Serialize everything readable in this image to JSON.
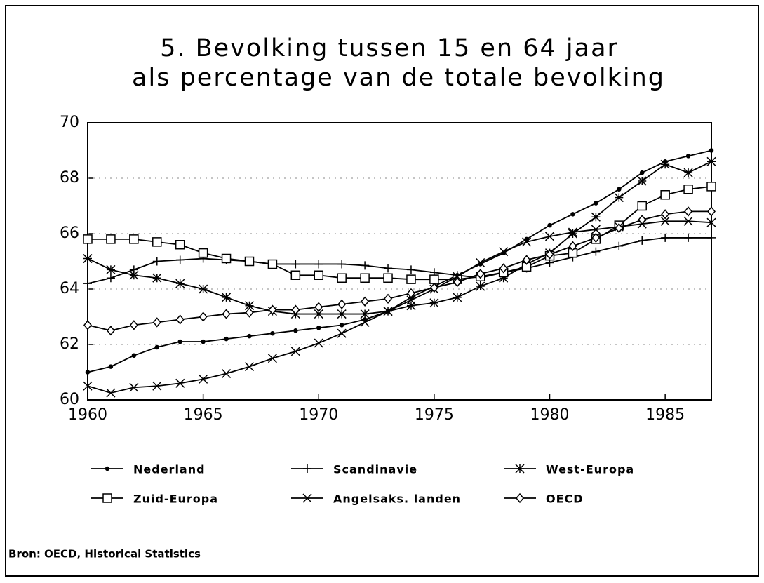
{
  "chart_data": {
    "type": "line",
    "title": [
      "5. Bevolking tussen 15 en 64 jaar",
      "als percentage van de totale bevolking"
    ],
    "source": "Bron: OECD, Historical Statistics",
    "x": [
      1960,
      1961,
      1962,
      1963,
      1964,
      1965,
      1966,
      1967,
      1968,
      1969,
      1970,
      1971,
      1972,
      1973,
      1974,
      1975,
      1976,
      1977,
      1978,
      1979,
      1980,
      1981,
      1982,
      1983,
      1984,
      1985,
      1986,
      1987
    ],
    "xlim": [
      1960,
      1987
    ],
    "xticks": [
      1960,
      1965,
      1970,
      1975,
      1980,
      1985
    ],
    "ylim": [
      60,
      70
    ],
    "yticks": [
      60,
      62,
      64,
      66,
      68,
      70
    ],
    "grid": true,
    "series": [
      {
        "name": "Nederland",
        "color": "#000000",
        "marker": "dot",
        "values": [
          61.0,
          61.2,
          61.6,
          61.9,
          62.1,
          62.1,
          62.2,
          62.3,
          62.4,
          62.5,
          62.6,
          62.7,
          62.9,
          63.2,
          63.7,
          64.1,
          64.5,
          64.9,
          65.3,
          65.8,
          66.3,
          66.7,
          67.1,
          67.6,
          68.2,
          68.6,
          68.8,
          69.0
        ]
      },
      {
        "name": "Scandinavie",
        "color": "#000000",
        "marker": "plus",
        "values": [
          64.2,
          64.4,
          64.7,
          65.0,
          65.05,
          65.1,
          65.05,
          65.0,
          64.9,
          64.9,
          64.9,
          64.9,
          64.85,
          64.75,
          64.7,
          64.6,
          64.5,
          64.4,
          64.6,
          64.75,
          64.95,
          65.15,
          65.35,
          65.55,
          65.75,
          65.85,
          65.85,
          65.85
        ]
      },
      {
        "name": "West-Europa",
        "color": "#000000",
        "marker": "asterisk",
        "values": [
          65.1,
          64.7,
          64.5,
          64.4,
          64.2,
          64.0,
          63.7,
          63.4,
          63.2,
          63.1,
          63.1,
          63.1,
          63.1,
          63.2,
          63.4,
          63.5,
          63.7,
          64.1,
          64.4,
          64.9,
          65.3,
          66.0,
          66.6,
          67.3,
          67.9,
          68.5,
          68.2,
          68.6
        ]
      },
      {
        "name": "Zuid-Europa",
        "color": "#000000",
        "marker": "square",
        "values": [
          65.8,
          65.8,
          65.8,
          65.7,
          65.6,
          65.3,
          65.1,
          65.0,
          64.9,
          64.5,
          64.5,
          64.4,
          64.4,
          64.4,
          64.35,
          64.35,
          64.35,
          64.45,
          64.6,
          64.8,
          65.2,
          65.3,
          65.8,
          66.3,
          67.0,
          67.4,
          67.6,
          67.7
        ]
      },
      {
        "name": "Angelsaks. landen",
        "color": "#000000",
        "marker": "x",
        "values": [
          60.5,
          60.25,
          60.45,
          60.5,
          60.6,
          60.75,
          60.95,
          61.2,
          61.5,
          61.75,
          62.05,
          62.4,
          62.8,
          63.2,
          63.6,
          64.0,
          64.45,
          64.95,
          65.35,
          65.7,
          65.9,
          66.05,
          66.15,
          66.25,
          66.35,
          66.45,
          66.45,
          66.4
        ]
      },
      {
        "name": "OECD",
        "color": "#000000",
        "marker": "diamond",
        "values": [
          62.7,
          62.5,
          62.7,
          62.8,
          62.9,
          63.0,
          63.1,
          63.15,
          63.25,
          63.25,
          63.35,
          63.45,
          63.55,
          63.65,
          63.85,
          64.05,
          64.25,
          64.55,
          64.75,
          65.05,
          65.25,
          65.55,
          65.85,
          66.2,
          66.5,
          66.7,
          66.8,
          66.8
        ]
      }
    ]
  }
}
